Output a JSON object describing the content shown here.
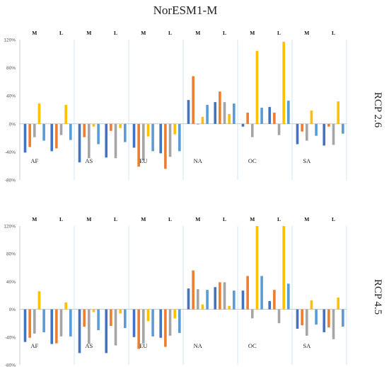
{
  "figure": {
    "title": "NorESM1-M",
    "colors": {
      "series1": "#4472c4",
      "series2": "#ed7d31",
      "series3": "#a5a5a5",
      "series4": "#ffc000",
      "series5": "#5b9bd5",
      "divider": "#c5e0f5",
      "axis": "#a8a8a8"
    }
  },
  "chart_data": [
    {
      "type": "bar",
      "scenario_label": "RCP 2.6",
      "ylim": [
        -80,
        120
      ],
      "yticks": [
        "-80%",
        "-40%",
        "0%",
        "40%",
        "80%",
        "120%"
      ],
      "grid": false,
      "categories": [
        "AF",
        "AS",
        "EU",
        "NA",
        "OC",
        "SA"
      ],
      "period_labels": [
        "M",
        "L"
      ],
      "groups": [
        {
          "region": "AF",
          "M": [
            -41,
            -33,
            -19,
            29,
            -24
          ],
          "L": [
            -39,
            -35,
            -16,
            27,
            -23
          ]
        },
        {
          "region": "AS",
          "M": [
            -55,
            -19,
            -49,
            -4,
            -29
          ],
          "L": [
            -48,
            -10,
            -49,
            -6,
            -26
          ]
        },
        {
          "region": "EU",
          "M": [
            -34,
            -61,
            -52,
            -18,
            -39
          ],
          "L": [
            -42,
            -64,
            -47,
            -15,
            -39
          ]
        },
        {
          "region": "NA",
          "M": [
            34,
            68,
            -1,
            10,
            27
          ],
          "L": [
            31,
            46,
            31,
            14,
            29
          ]
        },
        {
          "region": "OC",
          "M": [
            -4,
            16,
            -19,
            104,
            23
          ],
          "L": [
            24,
            16,
            -16,
            117,
            33
          ]
        },
        {
          "region": "SA",
          "M": [
            -29,
            -11,
            -24,
            19,
            -17
          ],
          "L": [
            -31,
            -4,
            -30,
            32,
            -14
          ]
        }
      ]
    },
    {
      "type": "bar",
      "scenario_label": "RCP 4.5",
      "ylim": [
        -80,
        120
      ],
      "yticks": [
        "-80%",
        "-40%",
        "0%",
        "40%",
        "80%",
        "120%"
      ],
      "grid": false,
      "categories": [
        "AF",
        "AS",
        "EU",
        "NA",
        "OC",
        "SA"
      ],
      "period_labels": [
        "M",
        "L"
      ],
      "groups": [
        {
          "region": "AF",
          "M": [
            -47,
            -41,
            -35,
            26,
            -33
          ],
          "L": [
            -50,
            -49,
            -39,
            10,
            -39
          ]
        },
        {
          "region": "AS",
          "M": [
            -63,
            -25,
            -50,
            -4,
            -30
          ],
          "L": [
            -63,
            -24,
            -52,
            -6,
            -27
          ]
        },
        {
          "region": "EU",
          "M": [
            -40,
            -57,
            -49,
            -17,
            -39
          ],
          "L": [
            -41,
            -54,
            -38,
            -13,
            -34
          ]
        },
        {
          "region": "NA",
          "M": [
            30,
            56,
            29,
            7,
            28
          ],
          "L": [
            32,
            39,
            39,
            5,
            27
          ]
        },
        {
          "region": "OC",
          "M": [
            27,
            48,
            -13,
            120,
            48
          ],
          "L": [
            12,
            28,
            -20,
            120,
            37
          ]
        },
        {
          "region": "SA",
          "M": [
            -28,
            -23,
            -38,
            13,
            -22
          ],
          "L": [
            -33,
            -26,
            -43,
            17,
            -25
          ]
        }
      ]
    }
  ]
}
